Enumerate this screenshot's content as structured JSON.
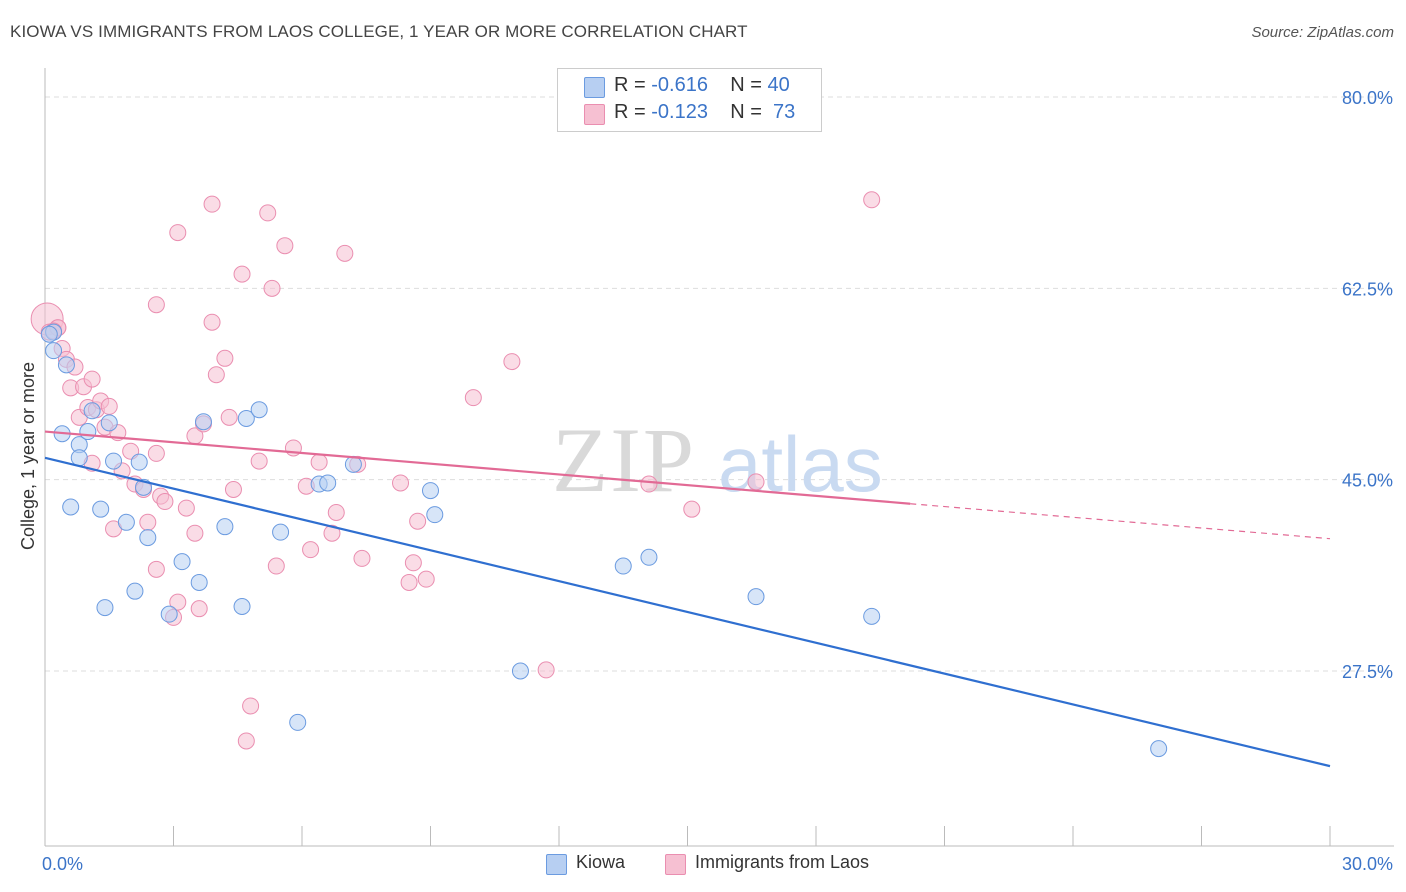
{
  "title": "KIOWA VS IMMIGRANTS FROM LAOS COLLEGE, 1 YEAR OR MORE CORRELATION CHART",
  "source": "Source: ZipAtlas.com",
  "watermark": {
    "zip": "ZIP",
    "atlas": "atlas"
  },
  "legend": {
    "rows": [
      {
        "r_label": "R = ",
        "r_value": "-0.616",
        "n_label": "N = ",
        "n_value": "40"
      },
      {
        "r_label": "R = ",
        "r_value": "-0.123",
        "n_label": "N = ",
        "n_value": "73"
      }
    ]
  },
  "colors": {
    "kiowa_fill": "#b7cff2",
    "kiowa_stroke": "#6b9be0",
    "kiowa_line": "#2f6fd0",
    "laos_fill": "#f6c0d2",
    "laos_stroke": "#ea8eb0",
    "laos_line": "#e26a95",
    "tick_label": "#3b74c8",
    "grid": "#dddddd"
  },
  "chart_data": {
    "type": "scatter",
    "title": "KIOWA VS IMMIGRANTS FROM LAOS COLLEGE, 1 YEAR OR MORE CORRELATION CHART",
    "xlabel": "",
    "ylabel": "College, 1 year or more",
    "xlim": [
      0,
      30
    ],
    "ylim": [
      10,
      85
    ],
    "x_tick_labels": [
      "0.0%",
      "30.0%"
    ],
    "y_ticks": [
      27.5,
      45.0,
      62.5,
      80.0
    ],
    "y_tick_labels": [
      "27.5%",
      "45.0%",
      "62.5%",
      "80.0%"
    ],
    "grid": "horizontal dashed",
    "legend_position": "top-center",
    "series": [
      {
        "name": "Kiowa",
        "R": -0.616,
        "N": 40,
        "points": [
          [
            0.2,
            58.5
          ],
          [
            0.2,
            56.8
          ],
          [
            0.4,
            49.2
          ],
          [
            0.5,
            55.5
          ],
          [
            0.6,
            42.5
          ],
          [
            0.8,
            48.2
          ],
          [
            0.8,
            47.0
          ],
          [
            1.0,
            49.4
          ],
          [
            1.1,
            51.3
          ],
          [
            1.3,
            42.3
          ],
          [
            1.4,
            33.3
          ],
          [
            1.5,
            50.2
          ],
          [
            1.6,
            46.7
          ],
          [
            1.9,
            41.1
          ],
          [
            2.1,
            34.8
          ],
          [
            2.2,
            46.6
          ],
          [
            2.3,
            44.3
          ],
          [
            2.4,
            39.7
          ],
          [
            2.9,
            32.7
          ],
          [
            3.2,
            37.5
          ],
          [
            3.6,
            35.6
          ],
          [
            3.7,
            50.3
          ],
          [
            4.2,
            40.7
          ],
          [
            4.6,
            33.4
          ],
          [
            4.7,
            50.6
          ],
          [
            5.0,
            51.4
          ],
          [
            5.5,
            40.2
          ],
          [
            5.9,
            22.8
          ],
          [
            6.4,
            44.6
          ],
          [
            6.6,
            44.7
          ],
          [
            7.2,
            46.4
          ],
          [
            9.0,
            44.0
          ],
          [
            9.1,
            41.8
          ],
          [
            11.1,
            27.5
          ],
          [
            13.5,
            37.1
          ],
          [
            14.1,
            37.9
          ],
          [
            16.6,
            34.3
          ],
          [
            19.3,
            32.5
          ],
          [
            26.0,
            20.4
          ],
          [
            0.1,
            58.3
          ]
        ]
      },
      {
        "name": "Immigrants from Laos",
        "R": -0.123,
        "N": 73,
        "points": [
          [
            0.05,
            59.7
          ],
          [
            0.1,
            58.5
          ],
          [
            0.3,
            58.9
          ],
          [
            0.4,
            57.0
          ],
          [
            0.5,
            56.0
          ],
          [
            0.6,
            53.4
          ],
          [
            0.7,
            55.3
          ],
          [
            0.8,
            50.7
          ],
          [
            0.9,
            53.5
          ],
          [
            1.0,
            51.6
          ],
          [
            1.1,
            46.5
          ],
          [
            1.1,
            54.2
          ],
          [
            1.2,
            51.4
          ],
          [
            1.3,
            52.2
          ],
          [
            1.4,
            49.8
          ],
          [
            1.5,
            51.7
          ],
          [
            1.6,
            40.5
          ],
          [
            1.7,
            49.3
          ],
          [
            1.8,
            45.8
          ],
          [
            2.0,
            47.6
          ],
          [
            2.1,
            44.6
          ],
          [
            2.3,
            44.1
          ],
          [
            2.4,
            41.1
          ],
          [
            2.6,
            47.4
          ],
          [
            2.6,
            36.8
          ],
          [
            2.6,
            61.0
          ],
          [
            2.7,
            43.5
          ],
          [
            2.8,
            43.0
          ],
          [
            3.0,
            32.4
          ],
          [
            3.1,
            33.8
          ],
          [
            3.1,
            67.6
          ],
          [
            3.3,
            42.4
          ],
          [
            3.5,
            49.0
          ],
          [
            3.5,
            40.1
          ],
          [
            3.6,
            33.2
          ],
          [
            3.7,
            50.1
          ],
          [
            3.9,
            59.4
          ],
          [
            3.9,
            70.2
          ],
          [
            4.0,
            54.6
          ],
          [
            4.2,
            56.1
          ],
          [
            4.3,
            50.7
          ],
          [
            4.4,
            44.1
          ],
          [
            4.6,
            63.8
          ],
          [
            4.7,
            21.1
          ],
          [
            4.8,
            24.3
          ],
          [
            5.0,
            46.7
          ],
          [
            5.2,
            69.4
          ],
          [
            5.3,
            62.5
          ],
          [
            5.4,
            37.1
          ],
          [
            5.6,
            66.4
          ],
          [
            5.8,
            47.9
          ],
          [
            6.1,
            44.4
          ],
          [
            6.2,
            38.6
          ],
          [
            6.4,
            46.6
          ],
          [
            6.7,
            40.1
          ],
          [
            6.8,
            42.0
          ],
          [
            7.0,
            65.7
          ],
          [
            7.3,
            46.4
          ],
          [
            7.4,
            37.8
          ],
          [
            8.3,
            44.7
          ],
          [
            8.5,
            35.6
          ],
          [
            8.6,
            37.4
          ],
          [
            8.7,
            41.2
          ],
          [
            8.9,
            35.9
          ],
          [
            10.0,
            52.5
          ],
          [
            10.9,
            55.8
          ],
          [
            11.7,
            27.6
          ],
          [
            14.1,
            44.6
          ],
          [
            15.1,
            42.3
          ],
          [
            16.6,
            44.8
          ],
          [
            19.3,
            70.6
          ],
          [
            0.3,
            58.9
          ],
          [
            0.2,
            58.6
          ]
        ]
      }
    ],
    "trendlines": [
      {
        "series": "Kiowa",
        "x": [
          0,
          30
        ],
        "y": [
          47.0,
          18.8
        ]
      },
      {
        "series": "Immigrants from Laos",
        "x": [
          0,
          20.2
        ],
        "y": [
          49.4,
          42.8
        ],
        "dashed_extension": {
          "x": [
            20.2,
            30
          ],
          "y": [
            42.8,
            39.6
          ]
        }
      }
    ]
  },
  "bottom_legend": {
    "kiowa": "Kiowa",
    "laos": "Immigrants from Laos"
  }
}
